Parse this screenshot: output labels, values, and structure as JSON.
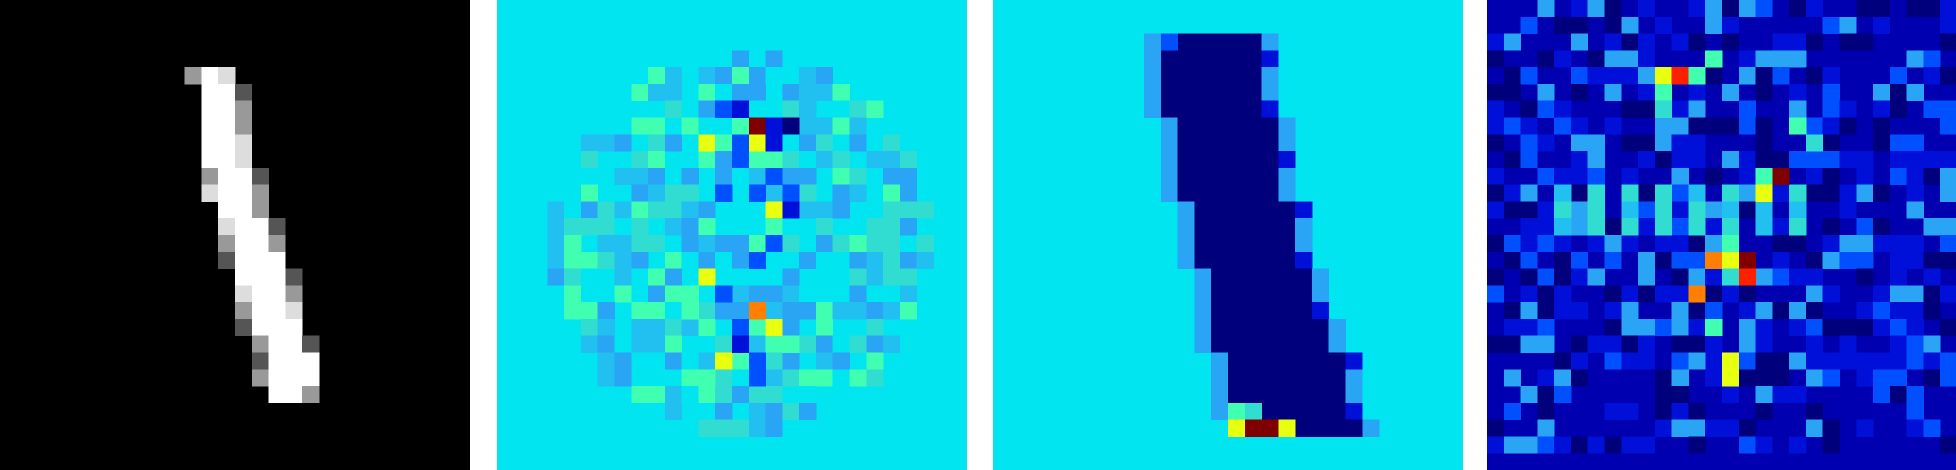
{
  "panels": [
    {
      "name": "input-digit",
      "colormap": "gray",
      "background_color": "#000000"
    },
    {
      "name": "heatmap-diffuse",
      "colormap": "jet",
      "background_color": "#00e5ef"
    },
    {
      "name": "heatmap-mask",
      "colormap": "jet",
      "background_color": "#00e5ef"
    },
    {
      "name": "heatmap-scatter",
      "colormap": "jet",
      "background_color": "#0000b0"
    }
  ],
  "grid": {
    "rows": 28,
    "cols": 28
  },
  "colors": {
    "white": "#ffffff",
    "light_gray": "#dddddd",
    "mid_gray": "#999999",
    "dark_gray": "#555555",
    "cyan": "#00e5ef",
    "cyan_blue": "#22c0f0",
    "sky_blue": "#2aa4f4",
    "blue": "#0050ff",
    "deep_blue": "#0010d8",
    "navy": "#00007c",
    "green": "#40ffb0",
    "teal_green": "#30ddd0",
    "yellow": "#e8ff10",
    "orange": "#ff8000",
    "red": "#ff2000",
    "dark_red": "#800000"
  }
}
